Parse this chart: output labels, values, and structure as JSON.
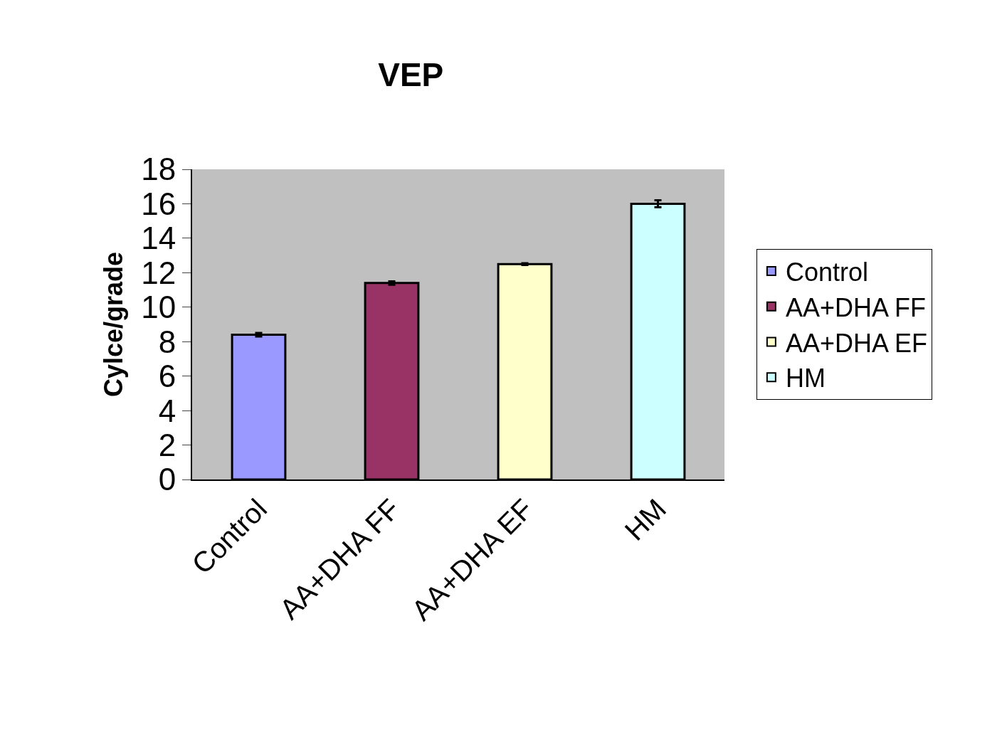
{
  "chart_data": {
    "type": "bar",
    "title": "VEP",
    "ylabel": "Cylce/grade",
    "categories": [
      "Control",
      "AA+DHA FF",
      "AA+DHA EF",
      "HM"
    ],
    "series": [
      {
        "name": "Control",
        "color": "#9999ff",
        "values": [
          8.4,
          null,
          null,
          null
        ],
        "errors": [
          0.1,
          null,
          null,
          null
        ]
      },
      {
        "name": "AA+DHA FF",
        "color": "#993366",
        "values": [
          null,
          11.4,
          null,
          null
        ],
        "errors": [
          null,
          0.1,
          null,
          null
        ]
      },
      {
        "name": "AA+DHA EF",
        "color": "#ffffcc",
        "values": [
          null,
          null,
          12.5,
          null
        ],
        "errors": [
          null,
          null,
          0.05,
          null
        ]
      },
      {
        "name": "HM",
        "color": "#ccffff",
        "values": [
          null,
          null,
          null,
          16.0
        ],
        "errors": [
          null,
          null,
          null,
          0.2
        ]
      }
    ],
    "ylim": [
      0,
      18
    ],
    "yticks": [
      0,
      2,
      4,
      6,
      8,
      10,
      12,
      14,
      16,
      18
    ],
    "grid": false,
    "legend": "right"
  }
}
